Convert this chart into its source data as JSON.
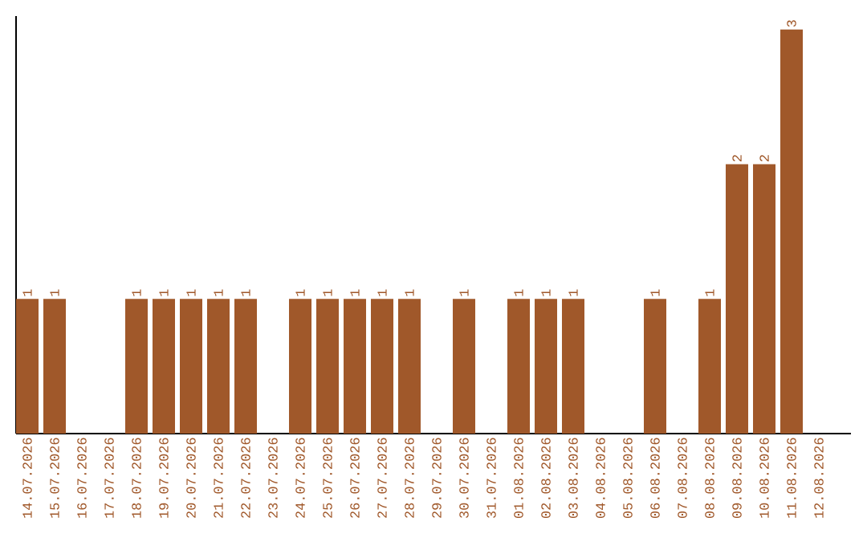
{
  "chart_data": {
    "type": "bar",
    "categories": [
      "14.07.2026",
      "15.07.2026",
      "16.07.2026",
      "17.07.2026",
      "18.07.2026",
      "19.07.2026",
      "20.07.2026",
      "21.07.2026",
      "22.07.2026",
      "23.07.2026",
      "24.07.2026",
      "25.07.2026",
      "26.07.2026",
      "27.07.2026",
      "28.07.2026",
      "29.07.2026",
      "30.07.2026",
      "31.07.2026",
      "01.08.2026",
      "02.08.2026",
      "03.08.2026",
      "04.08.2026",
      "05.08.2026",
      "06.08.2026",
      "07.08.2026",
      "08.08.2026",
      "09.08.2026",
      "10.08.2026",
      "11.08.2026",
      "12.08.2026"
    ],
    "values": [
      1,
      1,
      0,
      0,
      1,
      1,
      1,
      1,
      1,
      0,
      1,
      1,
      1,
      1,
      1,
      0,
      1,
      0,
      1,
      1,
      1,
      0,
      0,
      1,
      0,
      1,
      2,
      2,
      3,
      0
    ],
    "value_labels": [
      "1",
      "1",
      null,
      null,
      "1",
      "1",
      "1",
      "1",
      "1",
      null,
      "1",
      "1",
      "1",
      "1",
      "1",
      null,
      "1",
      null,
      "1",
      "1",
      "1",
      null,
      null,
      "1",
      null,
      "1",
      "2",
      "2",
      "3",
      null
    ],
    "color": "#a0582a",
    "ylim": [
      0,
      3.1
    ],
    "tick_labels": "x"
  }
}
